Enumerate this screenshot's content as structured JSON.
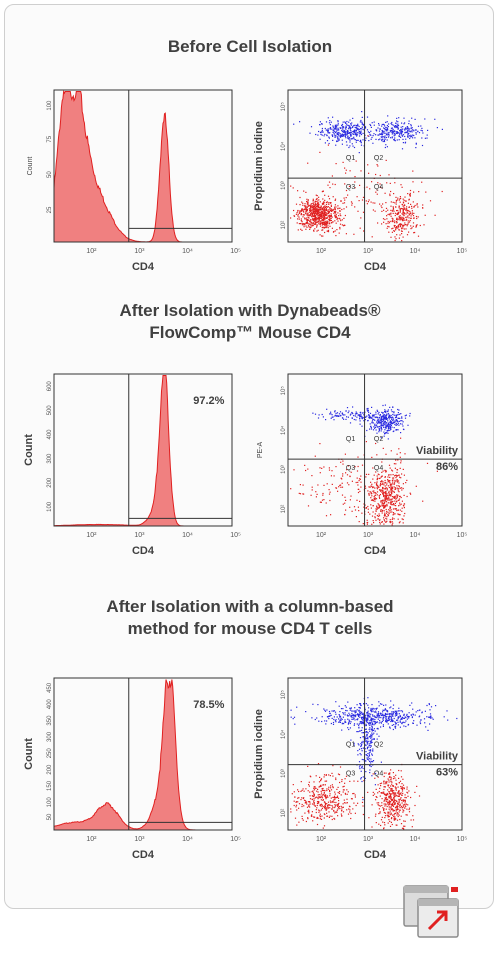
{
  "sections": [
    {
      "title": [
        "Before Cell Isolation"
      ],
      "histogram": {
        "type": "area",
        "xlabel": "CD4",
        "ylabel": "Count",
        "xscale": "log",
        "xticks": [
          "10²",
          "10³",
          "10⁴",
          "10⁵"
        ],
        "yticks": [
          "25",
          "50",
          "75",
          "100"
        ],
        "percent_label": ""
      },
      "scatter": {
        "type": "scatter",
        "xlabel": "CD4",
        "ylabel": "Propidium iodine",
        "xscale": "log",
        "xticks": [
          "10²",
          "10³",
          "10⁴",
          "10⁵"
        ],
        "yticks": [
          "10²",
          "10³",
          "10⁴",
          "10⁵"
        ],
        "quadrants": [
          "Q1",
          "Q2",
          "Q3",
          "Q4"
        ],
        "annotation": "",
        "annotation_value": ""
      }
    },
    {
      "title": [
        "After Isolation with Dynabeads®",
        "FlowComp™ Mouse CD4"
      ],
      "histogram": {
        "type": "area",
        "xlabel": "CD4",
        "ylabel": "Count",
        "xscale": "log",
        "xticks": [
          "10²",
          "10³",
          "10⁴",
          "10⁵"
        ],
        "yticks": [
          "100",
          "200",
          "300",
          "400",
          "500",
          "600"
        ],
        "percent_label": "97.2%"
      },
      "scatter": {
        "type": "scatter",
        "xlabel": "CD4",
        "ylabel": "PE-A",
        "xscale": "log",
        "xticks": [
          "10²",
          "10³",
          "10⁴",
          "10⁵"
        ],
        "yticks": [
          "10²",
          "10³",
          "10⁴",
          "10⁵"
        ],
        "quadrants": [
          "Q1",
          "Q2",
          "Q3",
          "Q4"
        ],
        "annotation": "Viability",
        "annotation_value": "86%"
      }
    },
    {
      "title": [
        "After Isolation with a column-based",
        "method for mouse CD4 T cells"
      ],
      "histogram": {
        "type": "area",
        "xlabel": "CD4",
        "ylabel": "Count",
        "xscale": "log",
        "xticks": [
          "10²",
          "10³",
          "10⁴",
          "10⁵"
        ],
        "yticks": [
          "50",
          "100",
          "150",
          "200",
          "250",
          "300",
          "350",
          "400",
          "450"
        ],
        "percent_label": "78.5%"
      },
      "scatter": {
        "type": "scatter",
        "xlabel": "CD4",
        "ylabel": "Propidium iodine",
        "xscale": "log",
        "xticks": [
          "10²",
          "10³",
          "10⁴",
          "10⁵"
        ],
        "yticks": [
          "10²",
          "10³",
          "10⁴",
          "10⁵"
        ],
        "quadrants": [
          "Q1",
          "Q2",
          "Q3",
          "Q4"
        ],
        "annotation": "Viability",
        "annotation_value": "63%"
      }
    }
  ],
  "colors": {
    "red": "#e02020",
    "red_fill": "#f08080",
    "blue": "#2a2ae0",
    "axis": "#333333",
    "text": "#404040"
  },
  "expand_icon": "expand-window-icon"
}
